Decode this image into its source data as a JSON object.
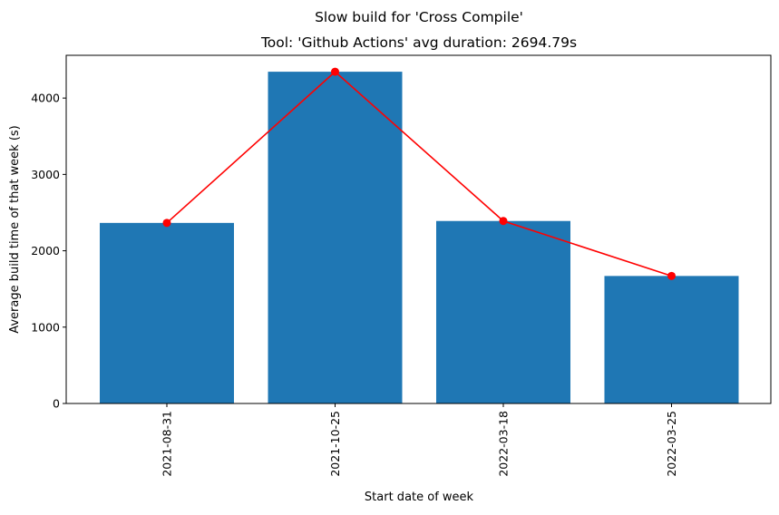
{
  "chart_data": {
    "type": "bar",
    "suptitle": "Slow build for 'Cross Compile'",
    "title": "Tool: 'Github Actions' avg duration: 2694.79s",
    "xlabel": "Start date of week",
    "ylabel": "Average build time of that week (s)",
    "categories": [
      "2021-08-31",
      "2021-10-25",
      "2022-03-18",
      "2022-03-25"
    ],
    "values": [
      2365,
      4345,
      2390,
      1670
    ],
    "line_values": [
      2365,
      4345,
      2390,
      1670
    ],
    "ylim": [
      0,
      4560
    ],
    "yticks": [
      0,
      1000,
      2000,
      3000,
      4000
    ],
    "grid": false,
    "bar_color": "#1f77b4",
    "line_color": "#ff0000"
  }
}
